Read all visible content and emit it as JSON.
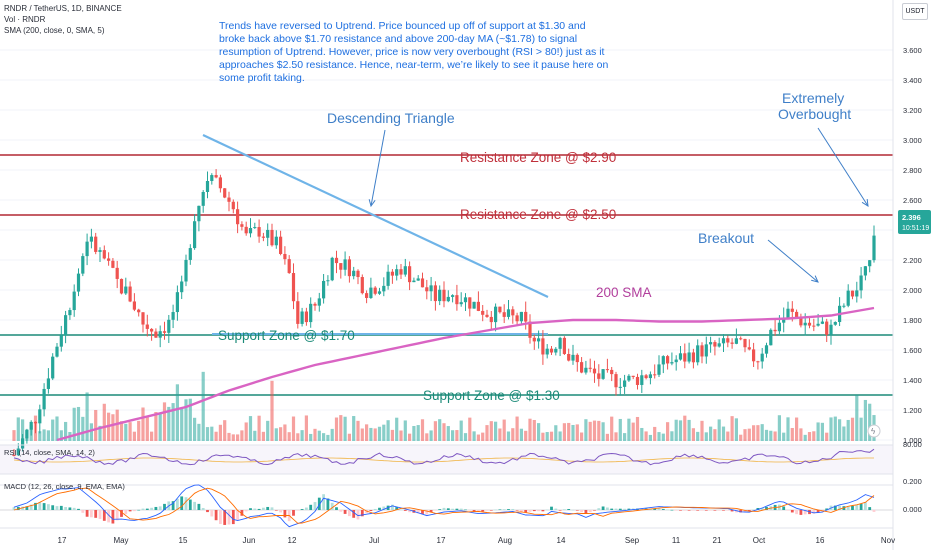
{
  "header": {
    "symbol_line": "RNDR / TetherUS, 1D, BINANCE",
    "vol_line": "Vol · RNDR",
    "sma_line": "SMA (200, close, 0, SMA, 5)",
    "currency_badge": "USDT"
  },
  "note_text": "Trends have reversed to Uptrend. Price bounced up off of support at $1.30 and broke back above $1.70 resistance and above 200-day MA (~$1.78) to signal resumption of Uptrend. However, price is now very overbought (RSI > 80!) just as it approaches $2.50 resistance. Hence, near-term, we’re likely to see it pause here on some profit taking.",
  "annotations": {
    "descending_triangle": "Descending Triangle",
    "resistance_290": "Resistance Zone @ $2.90",
    "resistance_250": "Resistance Zone @ $2.50",
    "support_170": "Support Zone @ $1.70",
    "support_130": "Support Zone @ $1.30",
    "sma_label": "200 SMA",
    "breakout": "Breakout",
    "overbought_1": "Extremely",
    "overbought_2": "Overbought"
  },
  "last_price": {
    "value": "2.396",
    "countdown": "10:51:19"
  },
  "rsi_pane": {
    "label": "RSI (14, close, SMA, 14, 2)",
    "tick_label": "80.00"
  },
  "macd_pane": {
    "label": "MACD (12, 26, close, 9, EMA, EMA)",
    "tick_labels": [
      "0.200",
      "0.000"
    ]
  },
  "colors": {
    "up": "#26a69a",
    "down": "#ef5350",
    "resistance": "#b22833",
    "support": "#1b8a78",
    "trendline": "#6fb4e8",
    "sma": "#d964c3",
    "note": "#1e6fe0"
  },
  "chart_data": {
    "type": "candlestick",
    "title": "RNDR / TetherUS, 1D, BINANCE",
    "y_axis": {
      "ticks": [
        "3.600",
        "3.400",
        "3.200",
        "3.000",
        "2.800",
        "2.600",
        "2.400",
        "2.200",
        "2.000",
        "1.800",
        "1.600",
        "1.400",
        "1.200",
        "1.000"
      ],
      "range": [
        0.9,
        3.8
      ]
    },
    "x_axis": {
      "ticks": [
        "17",
        "May",
        "15",
        "Jun",
        "12",
        "Jul",
        "17",
        "Aug",
        "14",
        "Sep",
        "11",
        "21",
        "Oct",
        "16",
        "Nov"
      ]
    },
    "levels": {
      "resistance": [
        2.9,
        2.5
      ],
      "support": [
        1.7,
        1.3
      ]
    },
    "series": [
      {
        "name": "RNDR",
        "anchors": [
          [
            0,
            0.9
          ],
          [
            5,
            1.15
          ],
          [
            9,
            1.55
          ],
          [
            14,
            2.0
          ],
          [
            17,
            2.35
          ],
          [
            21,
            2.2
          ],
          [
            24,
            2.05
          ],
          [
            27,
            1.95
          ],
          [
            30,
            1.78
          ],
          [
            33,
            1.72
          ],
          [
            36,
            1.78
          ],
          [
            39,
            2.0
          ],
          [
            42,
            2.5
          ],
          [
            45,
            2.75
          ],
          [
            48,
            2.68
          ],
          [
            51,
            2.55
          ],
          [
            54,
            2.35
          ],
          [
            57,
            2.4
          ],
          [
            61,
            2.3
          ],
          [
            64,
            2.1
          ],
          [
            66,
            1.78
          ],
          [
            70,
            1.9
          ],
          [
            74,
            2.2
          ],
          [
            78,
            2.15
          ],
          [
            82,
            2.0
          ],
          [
            86,
            2.05
          ],
          [
            90,
            2.15
          ],
          [
            94,
            2.05
          ],
          [
            98,
            1.95
          ],
          [
            102,
            1.98
          ],
          [
            106,
            1.92
          ],
          [
            110,
            1.85
          ],
          [
            114,
            1.82
          ],
          [
            118,
            1.8
          ],
          [
            121,
            1.65
          ],
          [
            125,
            1.6
          ],
          [
            127,
            1.7
          ],
          [
            129,
            1.55
          ],
          [
            132,
            1.48
          ],
          [
            136,
            1.42
          ],
          [
            140,
            1.4
          ],
          [
            144,
            1.4
          ],
          [
            148,
            1.45
          ],
          [
            152,
            1.52
          ],
          [
            156,
            1.55
          ],
          [
            160,
            1.6
          ],
          [
            164,
            1.62
          ],
          [
            168,
            1.65
          ],
          [
            171,
            1.55
          ],
          [
            173,
            1.55
          ],
          [
            176,
            1.72
          ],
          [
            180,
            1.85
          ],
          [
            184,
            1.78
          ],
          [
            188,
            1.75
          ],
          [
            190,
            1.74
          ],
          [
            192,
            1.85
          ],
          [
            194,
            1.95
          ],
          [
            196,
            2.0
          ],
          [
            198,
            2.1
          ],
          [
            199,
            2.25
          ],
          [
            200,
            2.4
          ]
        ]
      },
      {
        "name": "200 SMA",
        "anchors": [
          [
            0,
            0.9
          ],
          [
            10,
            1.0
          ],
          [
            20,
            1.08
          ],
          [
            30,
            1.15
          ],
          [
            40,
            1.22
          ],
          [
            50,
            1.33
          ],
          [
            60,
            1.42
          ],
          [
            70,
            1.5
          ],
          [
            80,
            1.56
          ],
          [
            90,
            1.62
          ],
          [
            100,
            1.68
          ],
          [
            110,
            1.73
          ],
          [
            120,
            1.78
          ],
          [
            130,
            1.8
          ],
          [
            140,
            1.8
          ],
          [
            150,
            1.79
          ],
          [
            160,
            1.79
          ],
          [
            170,
            1.8
          ],
          [
            180,
            1.81
          ],
          [
            190,
            1.83
          ],
          [
            200,
            1.88
          ]
        ]
      }
    ]
  }
}
